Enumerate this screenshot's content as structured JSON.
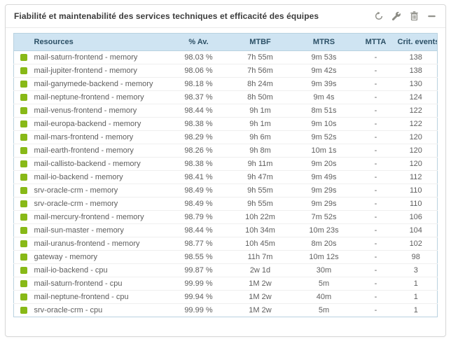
{
  "widget": {
    "title": "Fiabilité et maintenabilité des services techniques et efficacité des équipes",
    "toolbar": [
      {
        "icon": "refresh-icon"
      },
      {
        "icon": "wrench-icon"
      },
      {
        "icon": "trash-icon"
      },
      {
        "icon": "minimize-icon"
      }
    ]
  },
  "colors": {
    "status_ok": "#88b917",
    "header_bg": "#cfe4f2",
    "header_text": "#2c5066",
    "table_border": "#b9d2e0",
    "icon_gray": "#8c8c85"
  },
  "table": {
    "columns": [
      "Resources",
      "% Av.",
      "MTBF",
      "MTRS",
      "MTTA",
      "Crit. events"
    ],
    "rows": [
      {
        "resource": "mail-saturn-frontend - memory",
        "av": "98.03 %",
        "mtbf": "7h 55m",
        "mtrs": "9m 53s",
        "mtta": "-",
        "crit": "138"
      },
      {
        "resource": "mail-jupiter-frontend - memory",
        "av": "98.06 %",
        "mtbf": "7h 56m",
        "mtrs": "9m 42s",
        "mtta": "-",
        "crit": "138"
      },
      {
        "resource": "mail-ganymede-backend - memory",
        "av": "98.18 %",
        "mtbf": "8h 24m",
        "mtrs": "9m 39s",
        "mtta": "-",
        "crit": "130"
      },
      {
        "resource": "mail-neptune-frontend - memory",
        "av": "98.37 %",
        "mtbf": "8h 50m",
        "mtrs": "9m 4s",
        "mtta": "-",
        "crit": "124"
      },
      {
        "resource": "mail-venus-frontend - memory",
        "av": "98.44 %",
        "mtbf": "9h 1m",
        "mtrs": "8m 51s",
        "mtta": "-",
        "crit": "122"
      },
      {
        "resource": "mail-europa-backend - memory",
        "av": "98.38 %",
        "mtbf": "9h 1m",
        "mtrs": "9m 10s",
        "mtta": "-",
        "crit": "122"
      },
      {
        "resource": "mail-mars-frontend - memory",
        "av": "98.29 %",
        "mtbf": "9h 6m",
        "mtrs": "9m 52s",
        "mtta": "-",
        "crit": "120"
      },
      {
        "resource": "mail-earth-frontend - memory",
        "av": "98.26 %",
        "mtbf": "9h 8m",
        "mtrs": "10m 1s",
        "mtta": "-",
        "crit": "120"
      },
      {
        "resource": "mail-callisto-backend - memory",
        "av": "98.38 %",
        "mtbf": "9h 11m",
        "mtrs": "9m 20s",
        "mtta": "-",
        "crit": "120"
      },
      {
        "resource": "mail-io-backend - memory",
        "av": "98.41 %",
        "mtbf": "9h 47m",
        "mtrs": "9m 49s",
        "mtta": "-",
        "crit": "112"
      },
      {
        "resource": "srv-oracle-crm - memory",
        "av": "98.49 %",
        "mtbf": "9h 55m",
        "mtrs": "9m 29s",
        "mtta": "-",
        "crit": "110"
      },
      {
        "resource": "srv-oracle-crm - memory",
        "av": "98.49 %",
        "mtbf": "9h 55m",
        "mtrs": "9m 29s",
        "mtta": "-",
        "crit": "110"
      },
      {
        "resource": "mail-mercury-frontend - memory",
        "av": "98.79 %",
        "mtbf": "10h 22m",
        "mtrs": "7m 52s",
        "mtta": "-",
        "crit": "106"
      },
      {
        "resource": "mail-sun-master - memory",
        "av": "98.44 %",
        "mtbf": "10h 34m",
        "mtrs": "10m 23s",
        "mtta": "-",
        "crit": "104"
      },
      {
        "resource": "mail-uranus-frontend - memory",
        "av": "98.77 %",
        "mtbf": "10h 45m",
        "mtrs": "8m 20s",
        "mtta": "-",
        "crit": "102"
      },
      {
        "resource": "gateway - memory",
        "av": "98.55 %",
        "mtbf": "11h 7m",
        "mtrs": "10m 12s",
        "mtta": "-",
        "crit": "98"
      },
      {
        "resource": "mail-io-backend - cpu",
        "av": "99.87 %",
        "mtbf": "2w 1d",
        "mtrs": "30m",
        "mtta": "-",
        "crit": "3"
      },
      {
        "resource": "mail-saturn-frontend - cpu",
        "av": "99.99 %",
        "mtbf": "1M 2w",
        "mtrs": "5m",
        "mtta": "-",
        "crit": "1"
      },
      {
        "resource": "mail-neptune-frontend - cpu",
        "av": "99.94 %",
        "mtbf": "1M 2w",
        "mtrs": "40m",
        "mtta": "-",
        "crit": "1"
      },
      {
        "resource": "srv-oracle-crm - cpu",
        "av": "99.99 %",
        "mtbf": "1M 2w",
        "mtrs": "5m",
        "mtta": "-",
        "crit": "1"
      }
    ]
  }
}
